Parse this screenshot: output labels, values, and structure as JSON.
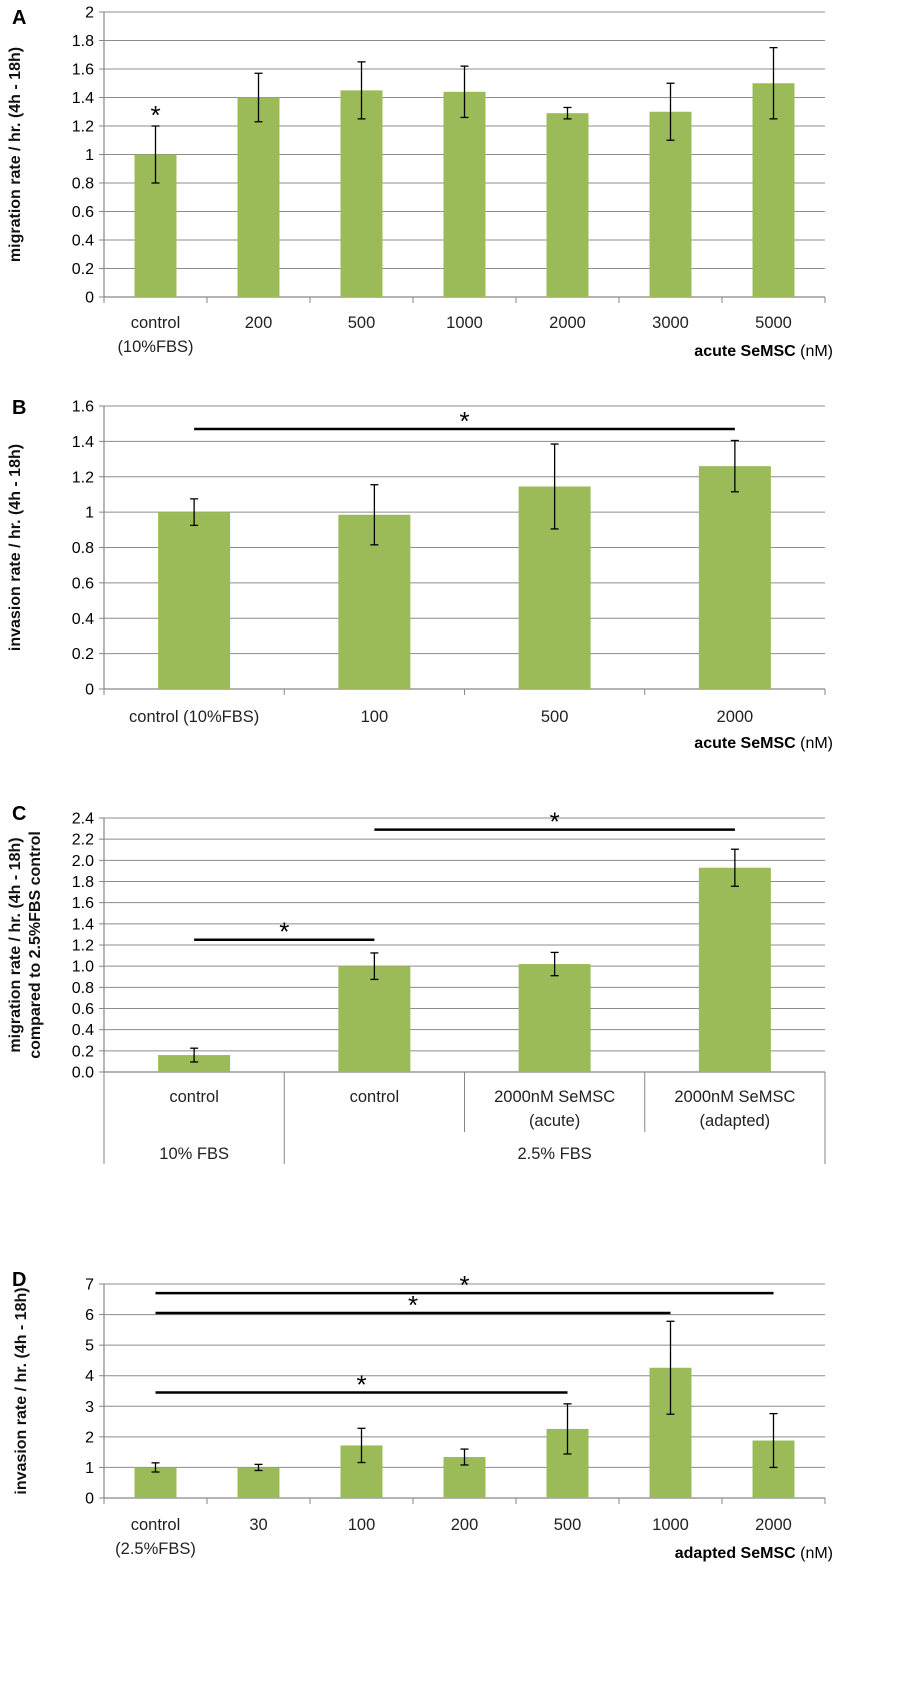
{
  "colors": {
    "bar": "#9BBB59",
    "grid": "#8c8c8c",
    "axis": "#868686",
    "text": "#000000"
  },
  "chart_data": [
    {
      "panel": "A",
      "type": "bar",
      "categories": [
        [
          "control",
          "(10%FBS)"
        ],
        [
          "200"
        ],
        [
          "500"
        ],
        [
          "1000"
        ],
        [
          "2000"
        ],
        [
          "3000"
        ],
        [
          "5000"
        ]
      ],
      "values": [
        1.0,
        1.4,
        1.45,
        1.44,
        1.29,
        1.3,
        1.5
      ],
      "errors": [
        0.2,
        0.17,
        0.2,
        0.18,
        0.04,
        0.2,
        0.25
      ],
      "ylabel": "migration rate / hr. (4h - 18h)",
      "xlabel_bold": "acute SeMSC",
      "xlabel_rest": " (nM)",
      "ylim": [
        0,
        2
      ],
      "yticks": [
        "0",
        "0.2",
        "0.4",
        "0.6",
        "0.8",
        "1",
        "1.2",
        "1.4",
        "1.6",
        "1.8",
        "2"
      ],
      "significance": [
        {
          "type": "bar_star",
          "index": 0,
          "label": "*"
        }
      ]
    },
    {
      "panel": "B",
      "type": "bar",
      "categories": [
        [
          "control (10%FBS)"
        ],
        [
          "100"
        ],
        [
          "500"
        ],
        [
          "2000"
        ]
      ],
      "values": [
        1.0,
        0.985,
        1.145,
        1.26
      ],
      "errors": [
        0.075,
        0.17,
        0.24,
        0.145
      ],
      "ylabel": "invasion rate / hr. (4h - 18h)",
      "xlabel_bold": "acute SeMSC",
      "xlabel_rest": " (nM)",
      "ylim": [
        0,
        1.6
      ],
      "yticks": [
        "0",
        "0.2",
        "0.4",
        "0.6",
        "0.8",
        "1",
        "1.2",
        "1.4",
        "1.6"
      ],
      "significance": [
        {
          "type": "line",
          "from": 0,
          "to": 3,
          "value": 1.47,
          "label": "*"
        }
      ]
    },
    {
      "panel": "C",
      "type": "bar",
      "categories": [
        [
          "control"
        ],
        [
          "control"
        ],
        [
          "2000nM SeMSC",
          "(acute)"
        ],
        [
          "2000nM SeMSC",
          "(adapted)"
        ]
      ],
      "groups": [
        {
          "label": "10% FBS",
          "start": 0,
          "end": 0
        },
        {
          "label": "2.5% FBS",
          "start": 1,
          "end": 3
        }
      ],
      "values": [
        0.16,
        1.0,
        1.02,
        1.93
      ],
      "errors": [
        0.065,
        0.125,
        0.11,
        0.175
      ],
      "ylabel": [
        "migration rate / hr. (4h - 18h)",
        "compared to 2.5%FBS control"
      ],
      "ylim": [
        0,
        2.4
      ],
      "yticks": [
        "0.0",
        "0.2",
        "0.4",
        "0.6",
        "0.8",
        "1.0",
        "1.2",
        "1.4",
        "1.6",
        "1.8",
        "2.0",
        "2.2",
        "2.4"
      ],
      "significance": [
        {
          "type": "line",
          "from": 0,
          "to": 1,
          "value": 1.25,
          "label": "*"
        },
        {
          "type": "line",
          "from": 1,
          "to": 3,
          "value": 2.29,
          "label": "*"
        }
      ]
    },
    {
      "panel": "D",
      "type": "bar",
      "categories": [
        [
          "control",
          "(2.5%FBS)"
        ],
        [
          "30"
        ],
        [
          "100"
        ],
        [
          "200"
        ],
        [
          "500"
        ],
        [
          "1000"
        ],
        [
          "2000"
        ]
      ],
      "values": [
        1.0,
        1.0,
        1.72,
        1.34,
        2.26,
        4.26,
        1.88
      ],
      "errors": [
        0.15,
        0.1,
        0.56,
        0.26,
        0.82,
        1.52,
        0.88
      ],
      "ylabel": "invasion rate / hr. (4h - 18h)",
      "xlabel_bold": "adapted SeMSC",
      "xlabel_rest": " (nM)",
      "ylim": [
        0,
        7
      ],
      "yticks": [
        "0",
        "1",
        "2",
        "3",
        "4",
        "5",
        "6",
        "7"
      ],
      "significance": [
        {
          "type": "line",
          "from": 0,
          "to": 6,
          "value": 6.7,
          "label": "*"
        },
        {
          "type": "line",
          "from": 0,
          "to": 5,
          "value": 6.05,
          "label": "*"
        },
        {
          "type": "line",
          "from": 0,
          "to": 4,
          "value": 3.45,
          "label": "*"
        }
      ]
    }
  ]
}
